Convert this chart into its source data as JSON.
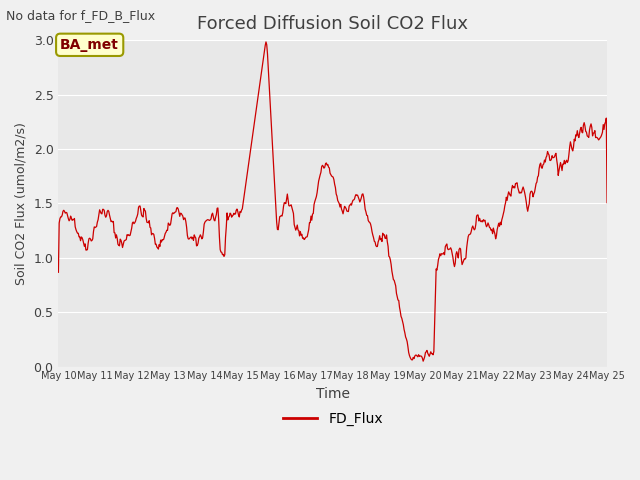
{
  "title": "Forced Diffusion Soil CO2 Flux",
  "xlabel": "Time",
  "ylabel": "Soil CO2 Flux (umol/m2/s)",
  "no_data_text": "No data for f_FD_B_Flux",
  "legend_label": "FD_Flux",
  "ba_met_label": "BA_met",
  "ylim": [
    0.0,
    3.0
  ],
  "yticks": [
    0.0,
    0.5,
    1.0,
    1.5,
    2.0,
    2.5,
    3.0
  ],
  "x_start_day": 10,
  "x_end_day": 25,
  "xtick_days": [
    10,
    11,
    12,
    13,
    14,
    15,
    16,
    17,
    18,
    19,
    20,
    21,
    22,
    23,
    24,
    25
  ],
  "line_color": "#cc0000",
  "bg_color": "#e8e8e8",
  "fig_bg_color": "#f0f0f0",
  "title_color": "#404040",
  "text_color": "#404040",
  "grid_color": "#ffffff",
  "ba_met_bg": "#ffffcc",
  "ba_met_border": "#999900"
}
